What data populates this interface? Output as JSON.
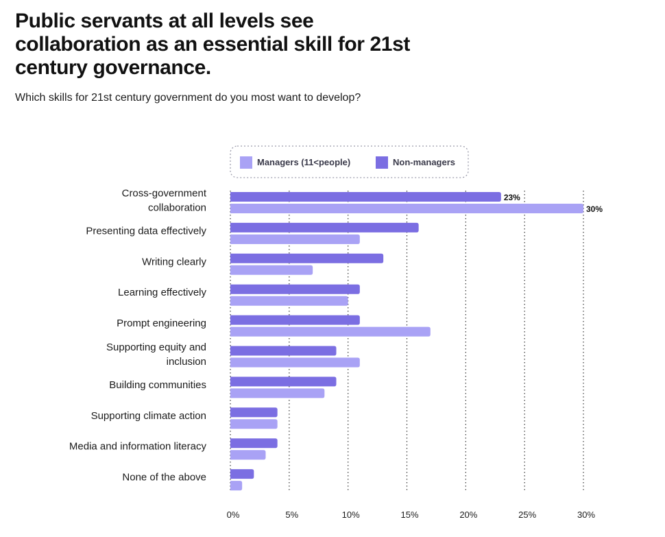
{
  "title": "Public servants at all levels see\ncollaboration as an essential skill for 21st\ncentury governance.",
  "subtitle": "Which skills for 21st century government do you most want to develop?",
  "colors": {
    "managers": "#a9a2f5",
    "non_managers": "#7b6ee2",
    "grid": "#333333",
    "legend_border": "#9a9aaa"
  },
  "chart_data": {
    "type": "bar",
    "orientation": "horizontal",
    "categories": [
      "Cross-government collaboration",
      "Presenting data effectively",
      "Writing clearly",
      "Learning effectively",
      "Prompt engineering",
      "Supporting equity and inclusion",
      "Building communities",
      "Supporting climate action",
      "Media and information literacy",
      "None of the above"
    ],
    "series": [
      {
        "name": "Non-managers",
        "values": [
          23,
          16,
          13,
          11,
          11,
          9,
          9,
          4,
          4,
          2
        ]
      },
      {
        "name": "Managers (11<people)",
        "values": [
          30,
          11,
          7,
          10,
          17,
          11,
          8,
          4,
          3,
          1
        ]
      }
    ],
    "legend_order": [
      "Managers (11<people)",
      "Non-managers"
    ],
    "data_labels": {
      "Non-managers": [
        "23%",
        "",
        "",
        "",
        "",
        "",
        "",
        "",
        "",
        ""
      ],
      "Managers (11<people)": [
        "30%",
        "",
        "",
        "",
        "",
        "",
        "",
        "",
        "",
        ""
      ]
    },
    "xlim": [
      0,
      30
    ],
    "xticks": [
      0,
      5,
      10,
      15,
      20,
      25,
      30
    ],
    "xtick_labels": [
      "0%",
      "5%",
      "10%",
      "15%",
      "20%",
      "25%",
      "30%"
    ],
    "grid": "vertical dotted",
    "legend_position": "top"
  }
}
